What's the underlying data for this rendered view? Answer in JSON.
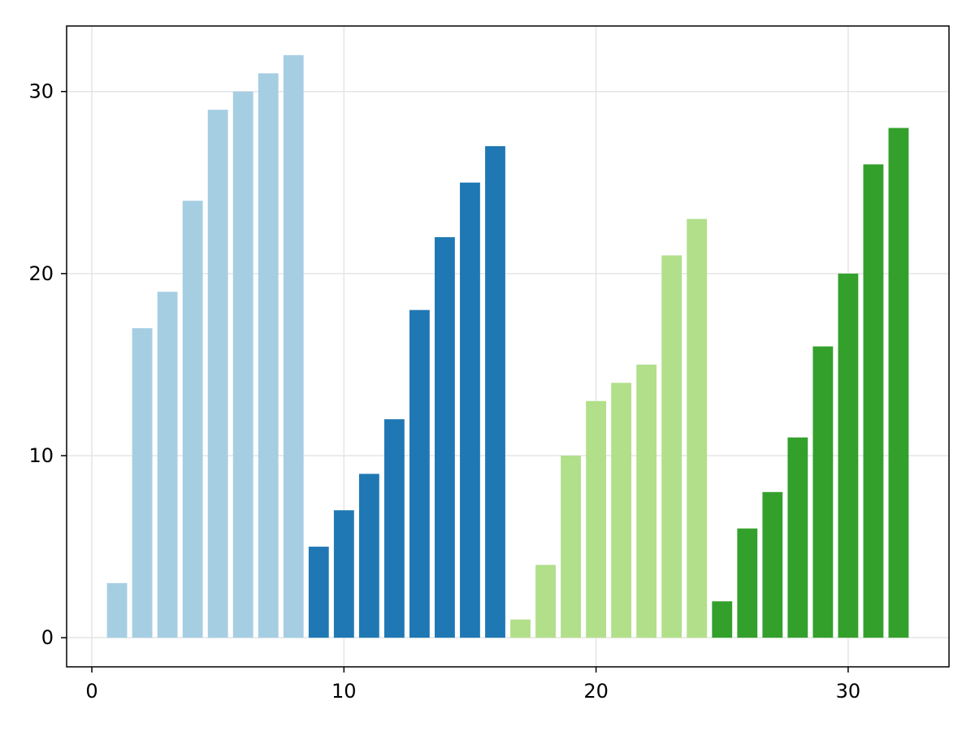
{
  "chart_data": {
    "type": "bar",
    "title": "",
    "xlabel": "",
    "ylabel": "",
    "xlim": [
      -1,
      34
    ],
    "ylim": [
      -1.6,
      33.6
    ],
    "grid": true,
    "legend": "none",
    "x_ticks": [
      0,
      10,
      20,
      30
    ],
    "y_ticks": [
      0,
      10,
      20,
      30
    ],
    "x_tick_labels": [
      "0",
      "10",
      "20",
      "30"
    ],
    "y_tick_labels": [
      "0",
      "10",
      "20",
      "30"
    ],
    "bar_width": 0.8,
    "series": [
      {
        "color": "#a6cee3",
        "x": [
          1,
          2,
          3,
          4,
          5,
          6,
          7,
          8
        ],
        "values": [
          3,
          17,
          19,
          24,
          29,
          30,
          31,
          32
        ]
      },
      {
        "color": "#1f78b4",
        "x": [
          9,
          10,
          11,
          12,
          13,
          14,
          15,
          16
        ],
        "values": [
          5,
          7,
          9,
          12,
          18,
          22,
          25,
          27
        ]
      },
      {
        "color": "#b2df8a",
        "x": [
          17,
          18,
          19,
          20,
          21,
          22,
          23,
          24
        ],
        "values": [
          1,
          4,
          10,
          13,
          14,
          15,
          21,
          23
        ]
      },
      {
        "color": "#33a02c",
        "x": [
          25,
          26,
          27,
          28,
          29,
          30,
          31,
          32
        ],
        "values": [
          2,
          6,
          8,
          11,
          16,
          20,
          26,
          28
        ]
      }
    ]
  }
}
